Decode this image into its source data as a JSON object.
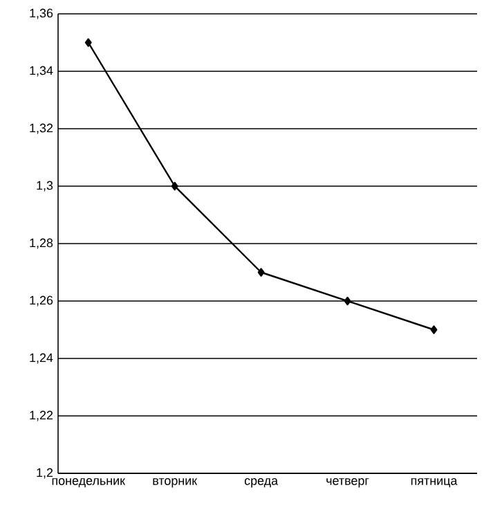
{
  "chart_data": {
    "type": "line",
    "categories": [
      "понедельник",
      "вторник",
      "среда",
      "четверг",
      "пятница"
    ],
    "series": [
      {
        "color": "#000000",
        "values": [
          1.35,
          1.3,
          1.27,
          1.26,
          1.25
        ]
      }
    ],
    "ylim": [
      1.2,
      1.36
    ],
    "yticks": [
      {
        "value": 1.2,
        "label": "1,2"
      },
      {
        "value": 1.22,
        "label": "1,22"
      },
      {
        "value": 1.24,
        "label": "1,24"
      },
      {
        "value": 1.26,
        "label": "1,26"
      },
      {
        "value": 1.28,
        "label": "1,28"
      },
      {
        "value": 1.3,
        "label": "1,3"
      },
      {
        "value": 1.32,
        "label": "1,32"
      },
      {
        "value": 1.34,
        "label": "1,34"
      },
      {
        "value": 1.36,
        "label": "1,36"
      }
    ],
    "grid": "y",
    "marker": "diamond",
    "line_style": "solid"
  }
}
